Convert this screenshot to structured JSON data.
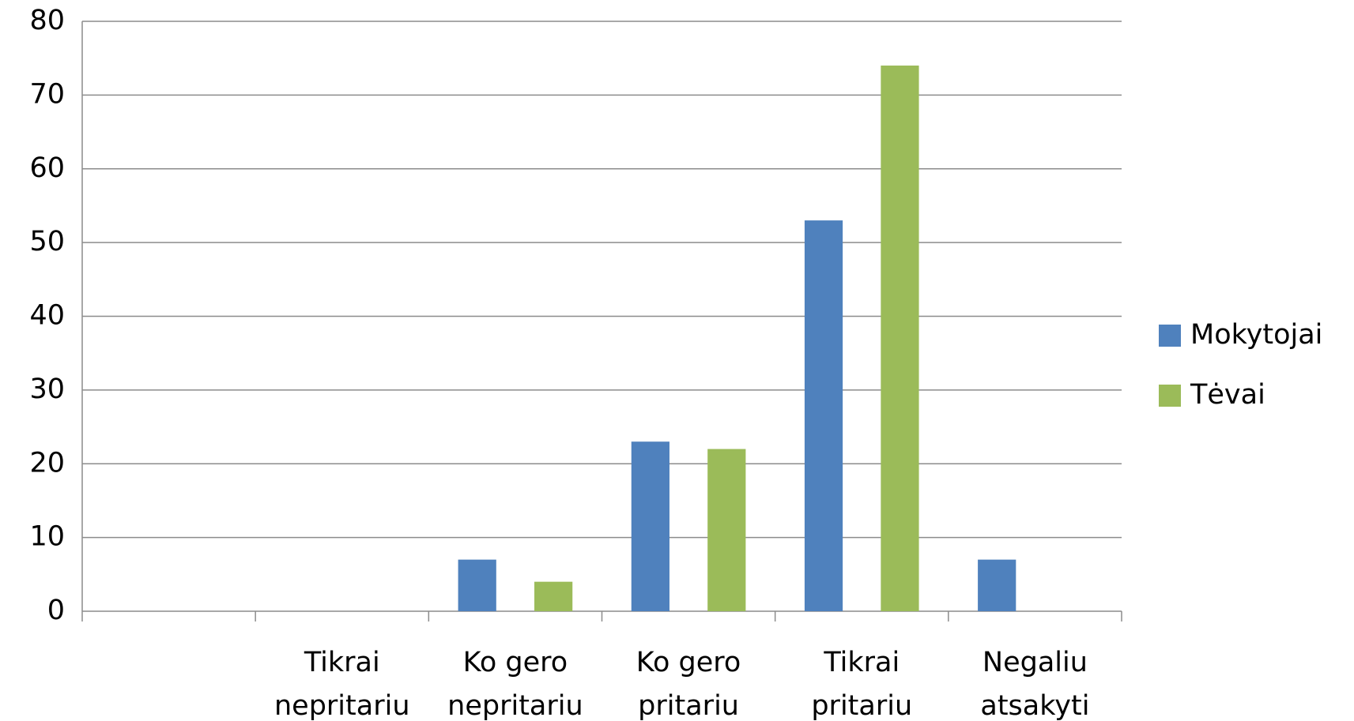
{
  "chart_data": {
    "type": "bar",
    "categories": [
      null,
      [
        "Tikrai",
        "nepritariu"
      ],
      [
        "Ko gero",
        "nepritariu"
      ],
      [
        "Ko gero",
        "pritariu"
      ],
      [
        "Tikrai",
        "pritariu"
      ],
      [
        "Negaliu",
        "atsakyti"
      ]
    ],
    "series": [
      {
        "name": "Mokytojai",
        "color": "#4f81bd",
        "values": [
          null,
          0,
          7,
          23,
          53,
          7
        ]
      },
      {
        "name": "Tėvai",
        "color": "#9bbb59",
        "values": [
          null,
          0,
          4,
          22,
          74,
          0
        ]
      }
    ],
    "ylim": [
      0,
      80
    ],
    "yticks": [
      0,
      10,
      20,
      30,
      40,
      50,
      60,
      70,
      80
    ],
    "grid": true,
    "legend": "right"
  }
}
